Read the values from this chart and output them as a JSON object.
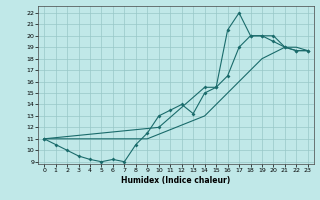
{
  "xlabel": "Humidex (Indice chaleur)",
  "bg_color": "#c0e8e8",
  "grid_color": "#98c8c8",
  "line_color": "#1a6b6b",
  "xlim": [
    -0.5,
    23.5
  ],
  "ylim": [
    8.8,
    22.6
  ],
  "xticks": [
    0,
    1,
    2,
    3,
    4,
    5,
    6,
    7,
    8,
    9,
    10,
    11,
    12,
    13,
    14,
    15,
    16,
    17,
    18,
    19,
    20,
    21,
    22,
    23
  ],
  "yticks": [
    9,
    10,
    11,
    12,
    13,
    14,
    15,
    16,
    17,
    18,
    19,
    20,
    21,
    22
  ],
  "line1_x": [
    0,
    1,
    2,
    3,
    4,
    5,
    6,
    7,
    8,
    9,
    10,
    11,
    12,
    13,
    14,
    15,
    16,
    17,
    18,
    19,
    20,
    21,
    22,
    23
  ],
  "line1_y": [
    11,
    10.5,
    10,
    9.5,
    9.2,
    9.0,
    9.2,
    9.0,
    10.5,
    11.5,
    13,
    13.5,
    14,
    13.2,
    15,
    15.5,
    16.5,
    19,
    20,
    20,
    19.5,
    19,
    18.7,
    18.7
  ],
  "line2_x": [
    0,
    10,
    14,
    15,
    16,
    17,
    18,
    19,
    20,
    21,
    22,
    23
  ],
  "line2_y": [
    11,
    12,
    15.5,
    15.5,
    20.5,
    22,
    20,
    20,
    20,
    19,
    18.7,
    18.7
  ],
  "line3_x": [
    0,
    9,
    14,
    18,
    19,
    20,
    21,
    22,
    23
  ],
  "line3_y": [
    11,
    11,
    13,
    17,
    18,
    18.5,
    19,
    19,
    18.7
  ]
}
